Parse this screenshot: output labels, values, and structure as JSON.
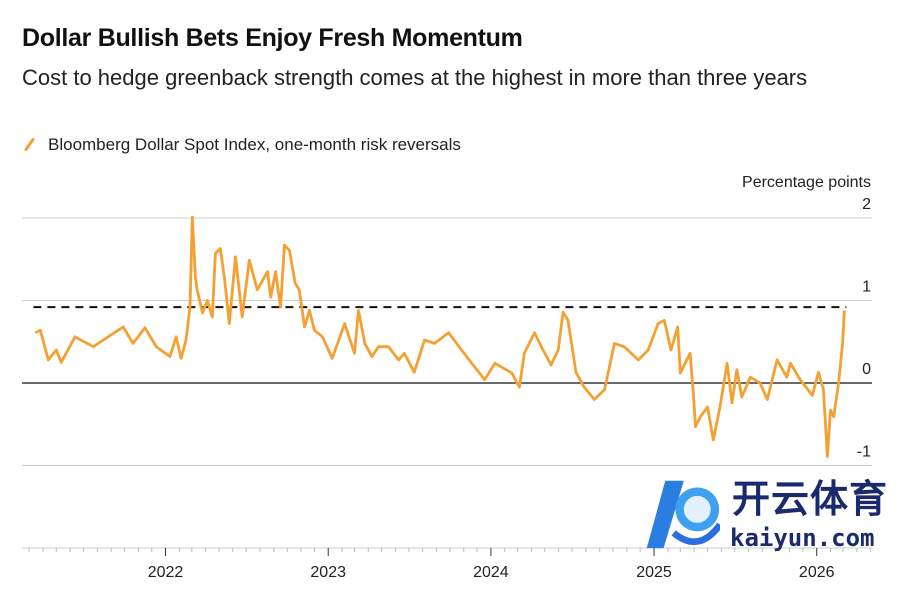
{
  "header": {
    "title": "Dollar Bullish Bets Enjoy Fresh Momentum",
    "subtitle": "Cost to hedge greenback strength comes at the highest in more than three years"
  },
  "watermark": {
    "text_cn": "开云体育",
    "text_en": "kaiyun.com"
  },
  "chart_data": {
    "type": "line",
    "title": "Dollar Bullish Bets Enjoy Fresh Momentum",
    "subtitle": "Cost to hedge greenback strength comes at the highest in more than three years",
    "ylabel": "Percentage points",
    "xlabel": "",
    "legend_position": "top-left",
    "grid": true,
    "ylim": [
      -2,
      2
    ],
    "yticks": [
      {
        "value": 2,
        "label": "2"
      },
      {
        "value": 1,
        "label": "1"
      },
      {
        "value": 0,
        "label": "0"
      },
      {
        "value": -1,
        "label": "-1"
      }
    ],
    "xlim": [
      "2021-02-13",
      "2026-05-05"
    ],
    "xticks": [
      {
        "date": "2022-01-01",
        "label": "2022"
      },
      {
        "date": "2023-01-01",
        "label": "2023"
      },
      {
        "date": "2024-01-01",
        "label": "2024"
      },
      {
        "date": "2025-01-01",
        "label": "2025"
      },
      {
        "date": "2026-01-01",
        "label": "2026"
      }
    ],
    "reference_line": {
      "value": 0.92,
      "style": "dashed",
      "color": "#111111"
    },
    "series": [
      {
        "name": "Bloomberg Dollar Spot Index, one-month risk reversals",
        "color": "#f5a033",
        "points": [
          [
            "2021-03-15",
            0.61
          ],
          [
            "2021-03-26",
            0.64
          ],
          [
            "2021-04-13",
            0.28
          ],
          [
            "2021-05-01",
            0.4
          ],
          [
            "2021-05-12",
            0.25
          ],
          [
            "2021-06-12",
            0.56
          ],
          [
            "2021-07-23",
            0.44
          ],
          [
            "2021-08-14",
            0.52
          ],
          [
            "2021-09-28",
            0.68
          ],
          [
            "2021-10-20",
            0.48
          ],
          [
            "2021-11-16",
            0.67
          ],
          [
            "2021-12-11",
            0.44
          ],
          [
            "2022-01-11",
            0.32
          ],
          [
            "2022-01-25",
            0.56
          ],
          [
            "2022-02-05",
            0.3
          ],
          [
            "2022-02-16",
            0.52
          ],
          [
            "2022-02-25",
            0.92
          ],
          [
            "2022-03-02",
            2.01
          ],
          [
            "2022-03-09",
            1.28
          ],
          [
            "2022-03-13",
            1.13
          ],
          [
            "2022-03-25",
            0.85
          ],
          [
            "2022-04-05",
            1.0
          ],
          [
            "2022-04-16",
            0.8
          ],
          [
            "2022-04-23",
            1.57
          ],
          [
            "2022-05-04",
            1.63
          ],
          [
            "2022-05-13",
            1.28
          ],
          [
            "2022-05-24",
            0.72
          ],
          [
            "2022-06-07",
            1.53
          ],
          [
            "2022-06-22",
            0.8
          ],
          [
            "2022-07-08",
            1.49
          ],
          [
            "2022-07-26",
            1.13
          ],
          [
            "2022-08-18",
            1.35
          ],
          [
            "2022-08-25",
            1.04
          ],
          [
            "2022-09-05",
            1.35
          ],
          [
            "2022-09-16",
            0.92
          ],
          [
            "2022-09-25",
            1.67
          ],
          [
            "2022-10-06",
            1.61
          ],
          [
            "2022-10-19",
            1.21
          ],
          [
            "2022-10-28",
            1.13
          ],
          [
            "2022-11-09",
            0.68
          ],
          [
            "2022-11-20",
            0.88
          ],
          [
            "2022-12-01",
            0.64
          ],
          [
            "2022-12-19",
            0.56
          ],
          [
            "2023-01-10",
            0.3
          ],
          [
            "2023-02-07",
            0.72
          ],
          [
            "2023-03-01",
            0.36
          ],
          [
            "2023-03-10",
            0.88
          ],
          [
            "2023-03-24",
            0.48
          ],
          [
            "2023-04-09",
            0.32
          ],
          [
            "2023-04-24",
            0.44
          ],
          [
            "2023-05-16",
            0.44
          ],
          [
            "2023-06-08",
            0.28
          ],
          [
            "2023-06-21",
            0.36
          ],
          [
            "2023-07-13",
            0.13
          ],
          [
            "2023-08-05",
            0.52
          ],
          [
            "2023-08-28",
            0.48
          ],
          [
            "2023-09-28",
            0.61
          ],
          [
            "2023-10-27",
            0.4
          ],
          [
            "2023-11-19",
            0.24
          ],
          [
            "2023-12-18",
            0.04
          ],
          [
            "2024-01-10",
            0.24
          ],
          [
            "2024-02-17",
            0.12
          ],
          [
            "2024-03-05",
            -0.05
          ],
          [
            "2024-03-16",
            0.36
          ],
          [
            "2024-04-08",
            0.61
          ],
          [
            "2024-04-23",
            0.44
          ],
          [
            "2024-05-15",
            0.22
          ],
          [
            "2024-05-31",
            0.4
          ],
          [
            "2024-06-11",
            0.86
          ],
          [
            "2024-06-22",
            0.76
          ],
          [
            "2024-07-10",
            0.13
          ],
          [
            "2024-07-28",
            -0.05
          ],
          [
            "2024-08-20",
            -0.2
          ],
          [
            "2024-09-12",
            -0.08
          ],
          [
            "2024-10-04",
            0.48
          ],
          [
            "2024-10-26",
            0.44
          ],
          [
            "2024-11-27",
            0.28
          ],
          [
            "2024-12-19",
            0.4
          ],
          [
            "2025-01-10",
            0.72
          ],
          [
            "2025-01-24",
            0.76
          ],
          [
            "2025-02-08",
            0.4
          ],
          [
            "2025-02-23",
            0.68
          ],
          [
            "2025-03-01",
            0.12
          ],
          [
            "2025-03-23",
            0.36
          ],
          [
            "2025-03-30",
            -0.12
          ],
          [
            "2025-04-04",
            -0.53
          ],
          [
            "2025-04-15",
            -0.41
          ],
          [
            "2025-05-01",
            -0.29
          ],
          [
            "2025-05-14",
            -0.69
          ],
          [
            "2025-05-29",
            -0.29
          ],
          [
            "2025-06-14",
            0.24
          ],
          [
            "2025-06-25",
            -0.24
          ],
          [
            "2025-07-06",
            0.16
          ],
          [
            "2025-07-17",
            -0.17
          ],
          [
            "2025-08-05",
            0.07
          ],
          [
            "2025-08-27",
            0.0
          ],
          [
            "2025-09-12",
            -0.2
          ],
          [
            "2025-10-04",
            0.28
          ],
          [
            "2025-10-26",
            0.07
          ],
          [
            "2025-11-03",
            0.24
          ],
          [
            "2025-11-25",
            0.04
          ],
          [
            "2025-12-22",
            -0.15
          ],
          [
            "2026-01-05",
            0.13
          ],
          [
            "2026-01-16",
            -0.08
          ],
          [
            "2026-01-25",
            -0.89
          ],
          [
            "2026-02-01",
            -0.33
          ],
          [
            "2026-02-08",
            -0.41
          ],
          [
            "2026-02-19",
            0.0
          ],
          [
            "2026-02-28",
            0.48
          ],
          [
            "2026-03-04",
            0.88
          ]
        ]
      }
    ]
  }
}
